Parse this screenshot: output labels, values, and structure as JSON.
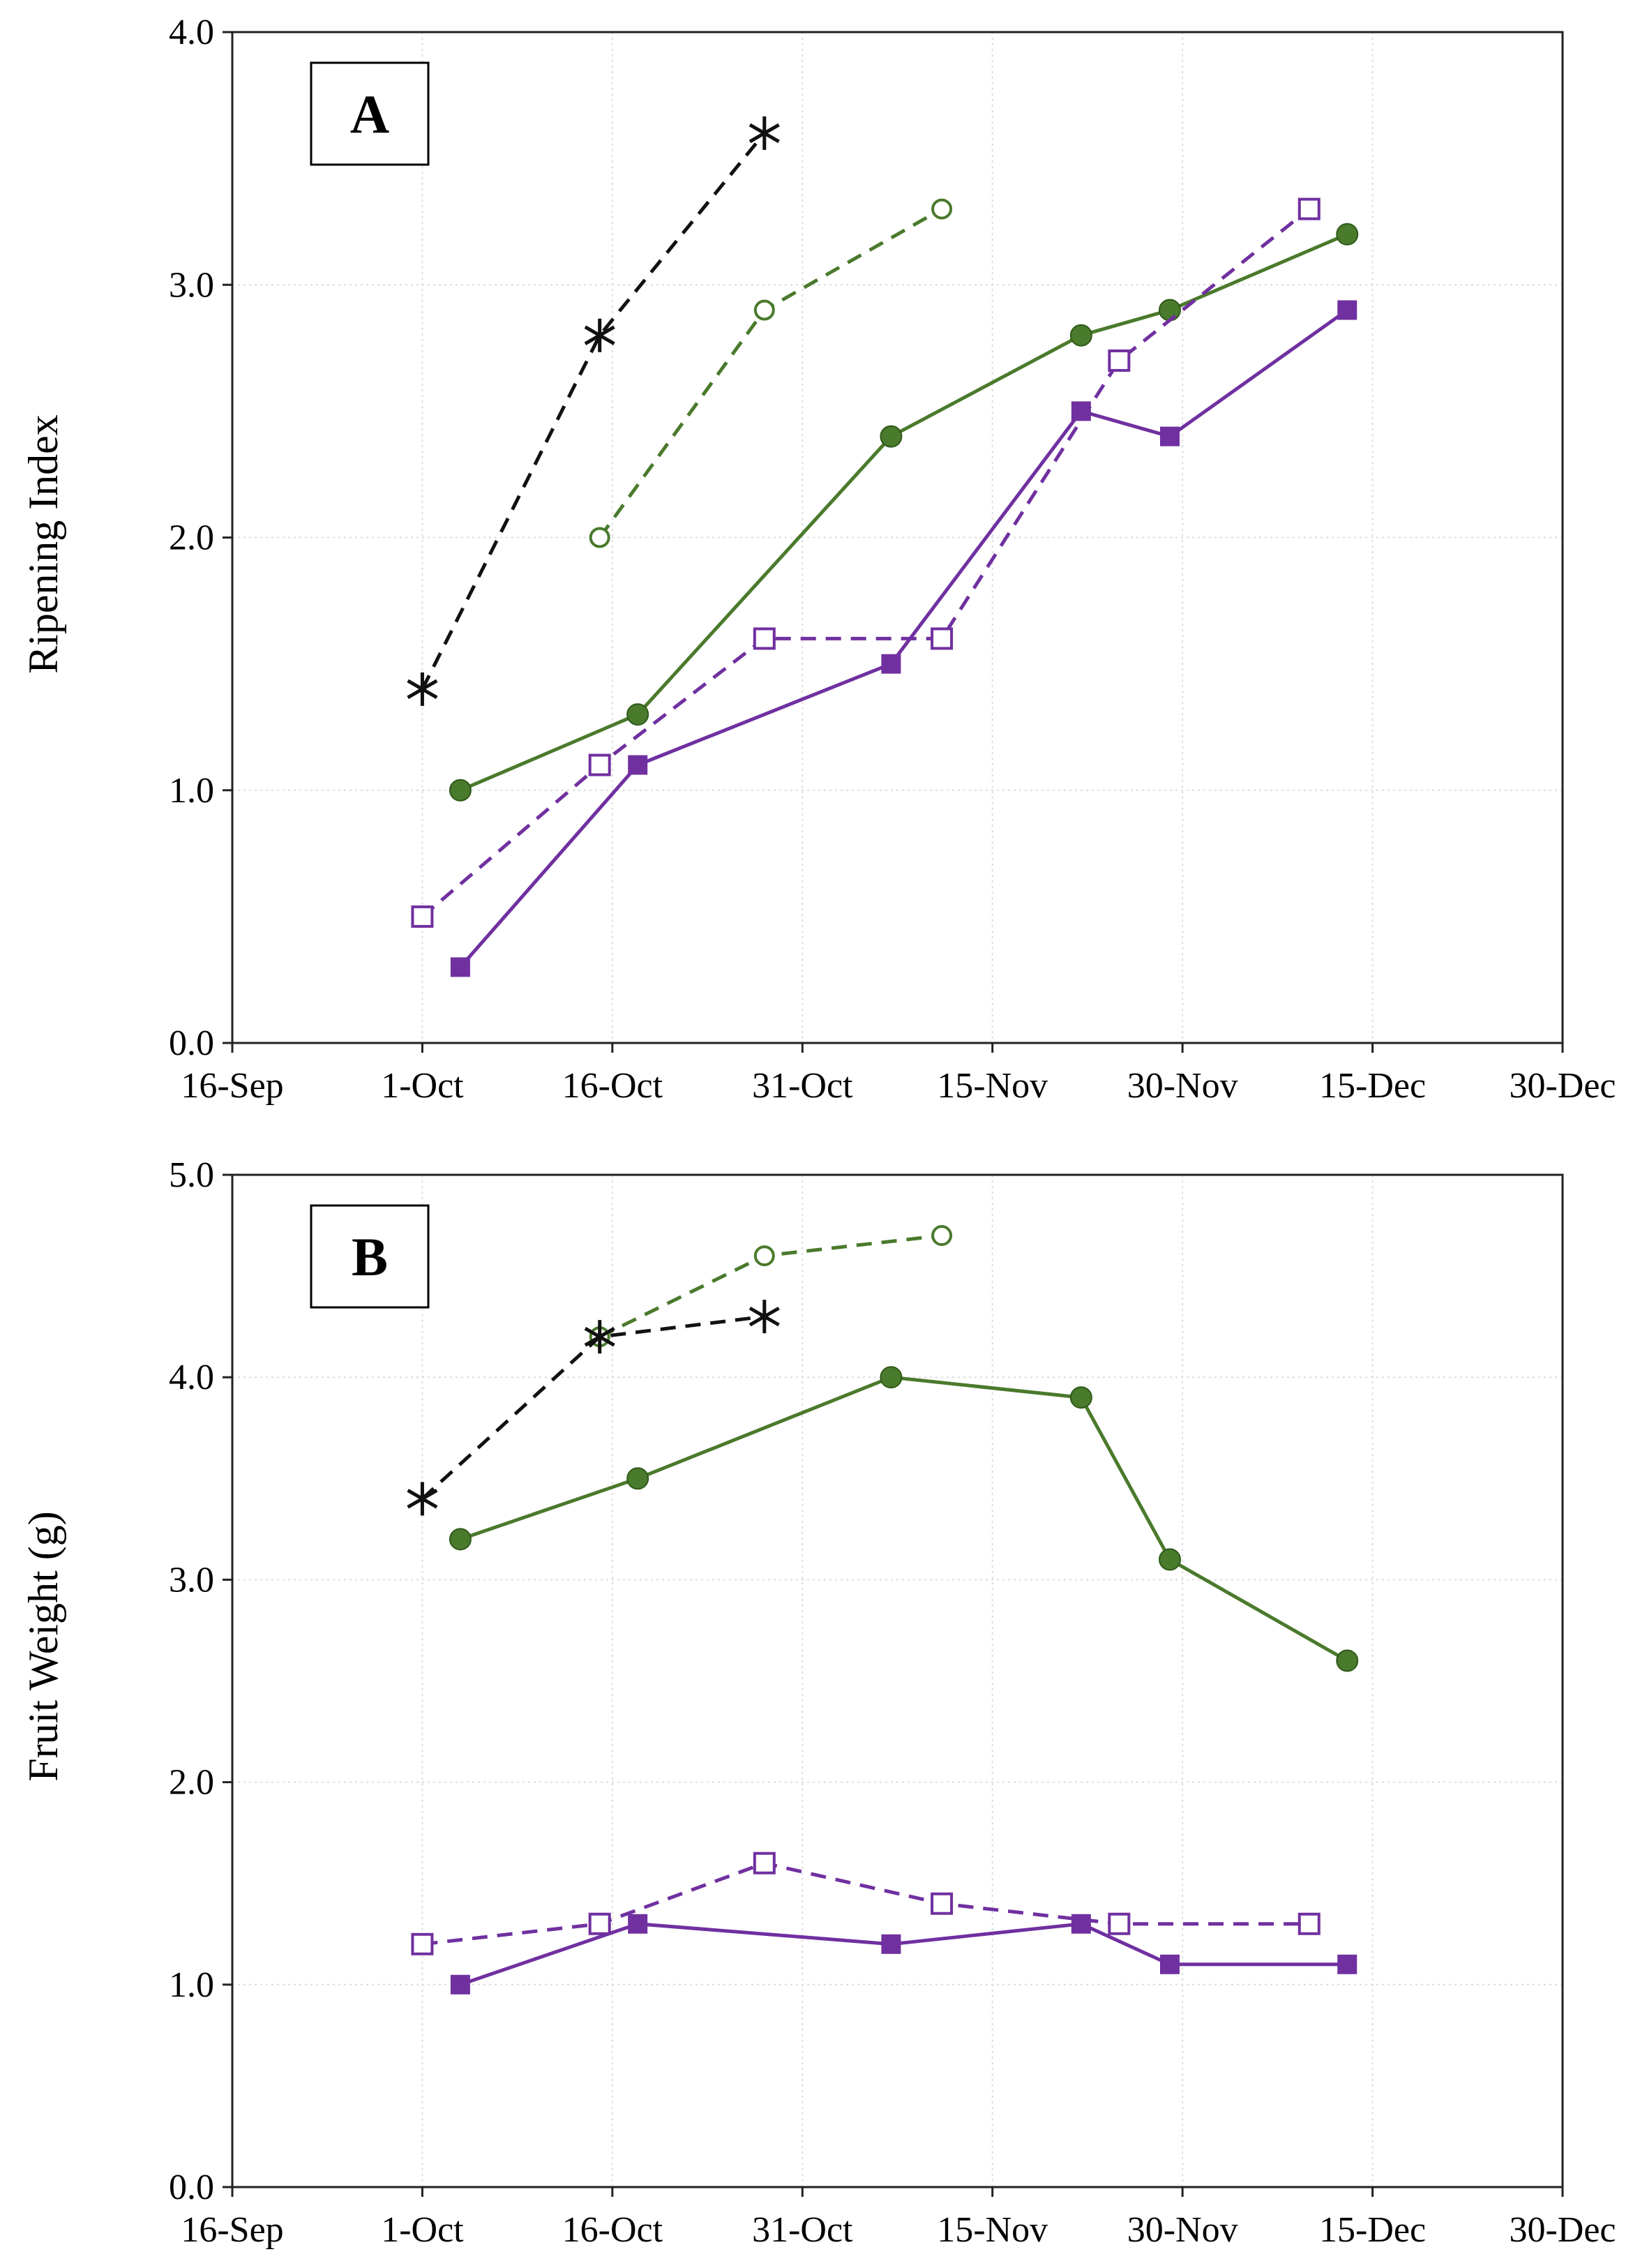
{
  "colors": {
    "green": "#4a7a2c",
    "purple": "#7030a0",
    "black": "#111111"
  },
  "chart_data": [
    {
      "panel": "A",
      "type": "line",
      "ylabel": "Ripening Index",
      "ylim": [
        0,
        4.0
      ],
      "yticks": [
        "0.0",
        "1.0",
        "2.0",
        "3.0",
        "4.0"
      ],
      "x_is_day_of_year": true,
      "xlim": [
        259,
        364
      ],
      "xticks": [
        {
          "day": 259,
          "label": "16-Sep"
        },
        {
          "day": 274,
          "label": "1-Oct"
        },
        {
          "day": 289,
          "label": "16-Oct"
        },
        {
          "day": 304,
          "label": "31-Oct"
        },
        {
          "day": 319,
          "label": "15-Nov"
        },
        {
          "day": 334,
          "label": "30-Nov"
        },
        {
          "day": 349,
          "label": "15-Dec"
        },
        {
          "day": 364,
          "label": "30-Dec"
        }
      ],
      "grid": true,
      "series": [
        {
          "name": "black-dashed-asterisk",
          "color": "black",
          "dash": true,
          "marker": "asterisk",
          "x": [
            274,
            288,
            301
          ],
          "y": [
            1.4,
            2.8,
            3.6
          ]
        },
        {
          "name": "green-dashed-open-circle",
          "color": "green",
          "dash": true,
          "marker": "circle-open",
          "x": [
            288,
            301,
            315
          ],
          "y": [
            2.0,
            2.9,
            3.3
          ]
        },
        {
          "name": "green-solid-filled-circle",
          "color": "green",
          "dash": false,
          "marker": "circle-filled",
          "x": [
            277,
            291,
            311,
            326,
            333,
            347
          ],
          "y": [
            1.0,
            1.3,
            2.4,
            2.8,
            2.9,
            3.2
          ]
        },
        {
          "name": "purple-dashed-open-square",
          "color": "purple",
          "dash": true,
          "marker": "square-open",
          "x": [
            274,
            288,
            301,
            315,
            329,
            344
          ],
          "y": [
            0.5,
            1.1,
            1.6,
            1.6,
            2.7,
            3.3
          ]
        },
        {
          "name": "purple-solid-filled-square",
          "color": "purple",
          "dash": false,
          "marker": "square-filled",
          "x": [
            277,
            291,
            311,
            326,
            333,
            347
          ],
          "y": [
            0.3,
            1.1,
            1.5,
            2.5,
            2.4,
            2.9
          ]
        }
      ]
    },
    {
      "panel": "B",
      "type": "line",
      "ylabel": "Fruit Weight (g)",
      "ylim": [
        0,
        5.0
      ],
      "yticks": [
        "0.0",
        "1.0",
        "2.0",
        "3.0",
        "4.0",
        "5.0"
      ],
      "x_is_day_of_year": true,
      "xlim": [
        259,
        364
      ],
      "xticks": [
        {
          "day": 259,
          "label": "16-Sep"
        },
        {
          "day": 274,
          "label": "1-Oct"
        },
        {
          "day": 289,
          "label": "16-Oct"
        },
        {
          "day": 304,
          "label": "31-Oct"
        },
        {
          "day": 319,
          "label": "15-Nov"
        },
        {
          "day": 334,
          "label": "30-Nov"
        },
        {
          "day": 349,
          "label": "15-Dec"
        },
        {
          "day": 364,
          "label": "30-Dec"
        }
      ],
      "grid": true,
      "series": [
        {
          "name": "green-dashed-open-circle",
          "color": "green",
          "dash": true,
          "marker": "circle-open",
          "x": [
            288,
            301,
            315
          ],
          "y": [
            4.2,
            4.6,
            4.7
          ]
        },
        {
          "name": "black-dashed-asterisk",
          "color": "black",
          "dash": true,
          "marker": "asterisk",
          "x": [
            274,
            288,
            301
          ],
          "y": [
            3.4,
            4.2,
            4.3
          ]
        },
        {
          "name": "green-solid-filled-circle",
          "color": "green",
          "dash": false,
          "marker": "circle-filled",
          "x": [
            277,
            291,
            311,
            326,
            333,
            347
          ],
          "y": [
            3.2,
            3.5,
            4.0,
            3.9,
            3.1,
            2.6
          ]
        },
        {
          "name": "purple-dashed-open-square",
          "color": "purple",
          "dash": true,
          "marker": "square-open",
          "x": [
            274,
            288,
            301,
            315,
            329,
            344
          ],
          "y": [
            1.2,
            1.3,
            1.6,
            1.4,
            1.3,
            1.3
          ]
        },
        {
          "name": "purple-solid-filled-square",
          "color": "purple",
          "dash": false,
          "marker": "square-filled",
          "x": [
            277,
            291,
            311,
            326,
            333,
            347
          ],
          "y": [
            1.0,
            1.3,
            1.2,
            1.3,
            1.1,
            1.1
          ]
        }
      ]
    }
  ]
}
